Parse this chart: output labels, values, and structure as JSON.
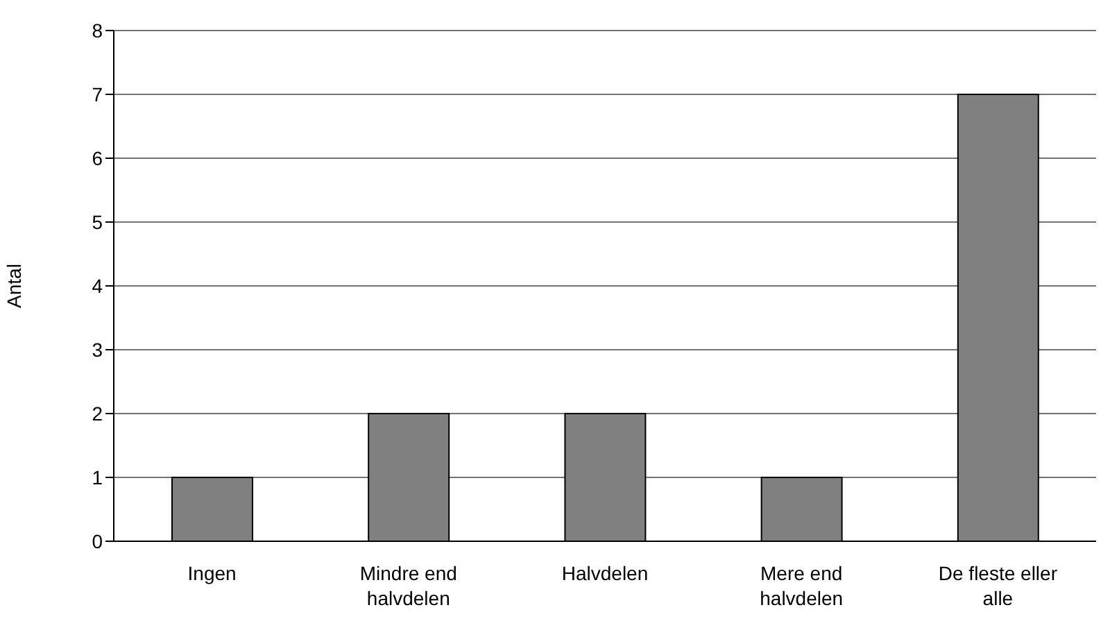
{
  "chart_data": {
    "type": "bar",
    "ylabel": "Antal",
    "categories": [
      "Ingen",
      "Mindre end halvdelen",
      "Halvdelen",
      "Mere end halvdelen",
      "De fleste eller alle"
    ],
    "values": [
      1,
      2,
      2,
      1,
      7
    ],
    "color": "#808080",
    "ylim": [
      0,
      8
    ],
    "yticks": [
      0,
      1,
      2,
      3,
      4,
      5,
      6,
      7,
      8
    ],
    "grid": "y"
  }
}
